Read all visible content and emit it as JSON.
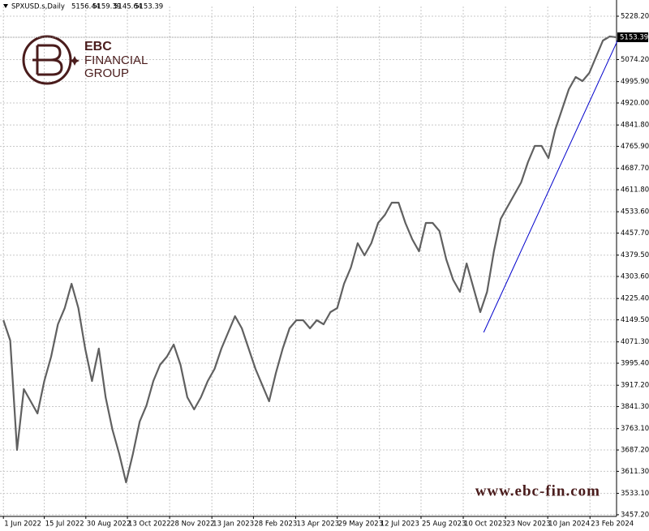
{
  "chart_data": {
    "type": "line",
    "symbol": "SPXUSD.s,Daily",
    "header_values": [
      5156.44,
      5159.39,
      5145.64,
      5153.39
    ],
    "logo": {
      "name": "EBC",
      "line1": "FINANCIAL",
      "line2": "GROUP"
    },
    "watermark": "www.ebc-fin.com",
    "color": "#606060",
    "values": [
      4148.2,
      4076.2,
      3687.4,
      3903.4,
      3860.2,
      3817.0,
      3932.2,
      4018.6,
      4133.8,
      4191.4,
      4277.8,
      4191.4,
      4047.4,
      3932.2,
      4047.4,
      3874.6,
      3759.4,
      3673.0,
      3572.2,
      3673.0,
      3788.2,
      3845.8,
      3932.2,
      3989.8,
      4018.6,
      4061.8,
      3989.8,
      3874.6,
      3831.4,
      3874.6,
      3932.2,
      3975.4,
      4047.4,
      4105.0,
      4162.6,
      4119.4,
      4047.4,
      3975.4,
      3917.8,
      3860.2,
      3961.0,
      4047.4,
      4119.4,
      4148.2,
      4148.2,
      4119.4,
      4148.2,
      4133.8,
      4177.0,
      4191.4,
      4277.8,
      4335.4,
      4421.8,
      4378.6,
      4421.8,
      4493.8,
      4522.6,
      4565.8,
      4565.8,
      4493.8,
      4436.2,
      4393.0,
      4493.8,
      4493.8,
      4465.0,
      4364.2,
      4292.2,
      4249.0,
      4349.8,
      4263.4,
      4177.0,
      4249.0,
      4393.0,
      4508.2,
      4551.4,
      4594.6,
      4637.8,
      4709.8,
      4767.4,
      4767.4,
      4724.2,
      4825.0,
      4897.0,
      4969.0,
      5012.2,
      4997.8,
      5026.6,
      5084.2,
      5141.8,
      5156.2,
      5153.39
    ],
    "last_price": 5153.39,
    "trendline": {
      "color": "#0000cc",
      "x": [
        70.5,
        90.3
      ],
      "y": [
        4105.0,
        5150.0
      ]
    },
    "xlim": [
      -0.5,
      90
    ],
    "ylim": [
      3451.2,
      5262.8
    ],
    "xticks": [
      {
        "value": 0,
        "label": "1 Jun 2022"
      },
      {
        "value": 6,
        "label": "15 Jul 2022"
      },
      {
        "value": 12.1,
        "label": "30 Aug 2022"
      },
      {
        "value": 18.2,
        "label": "13 Oct 2022"
      },
      {
        "value": 24.4,
        "label": "28 Nov 2022"
      },
      {
        "value": 30.6,
        "label": "13 Jan 2023"
      },
      {
        "value": 36.7,
        "label": "28 Feb 2023"
      },
      {
        "value": 42.9,
        "label": "13 Apr 2023"
      },
      {
        "value": 49,
        "label": "29 May 2023"
      },
      {
        "value": 55.2,
        "label": "12 Jul 2023"
      },
      {
        "value": 61.3,
        "label": "25 Aug 2023"
      },
      {
        "value": 67.5,
        "label": "10 Oct 2023"
      },
      {
        "value": 73.7,
        "label": "23 Nov 2023"
      },
      {
        "value": 79.9,
        "label": "10 Jan 2024"
      },
      {
        "value": 86.1,
        "label": "23 Feb 2024"
      }
    ],
    "yticks": [
      {
        "value": 5228.2,
        "label": "5228.20"
      },
      {
        "value": 5074.2,
        "label": "5074.20"
      },
      {
        "value": 4995.9,
        "label": "4995.90"
      },
      {
        "value": 4920.0,
        "label": "4920.00"
      },
      {
        "value": 4841.8,
        "label": "4841.80"
      },
      {
        "value": 4765.9,
        "label": "4765.90"
      },
      {
        "value": 4687.7,
        "label": "4687.70"
      },
      {
        "value": 4611.8,
        "label": "4611.80"
      },
      {
        "value": 4533.6,
        "label": "4533.60"
      },
      {
        "value": 4457.7,
        "label": "4457.70"
      },
      {
        "value": 4379.5,
        "label": "4379.50"
      },
      {
        "value": 4303.6,
        "label": "4303.60"
      },
      {
        "value": 4225.4,
        "label": "4225.40"
      },
      {
        "value": 4149.5,
        "label": "4149.50"
      },
      {
        "value": 4071.3,
        "label": "4071.30"
      },
      {
        "value": 3995.4,
        "label": "3995.40"
      },
      {
        "value": 3917.2,
        "label": "3917.20"
      },
      {
        "value": 3841.3,
        "label": "3841.30"
      },
      {
        "value": 3763.1,
        "label": "3763.10"
      },
      {
        "value": 3687.2,
        "label": "3687.20"
      },
      {
        "value": 3611.3,
        "label": "3611.30"
      },
      {
        "value": 3533.1,
        "label": "3533.10"
      },
      {
        "value": 3457.2,
        "label": "3457.20"
      }
    ],
    "grid": true
  }
}
